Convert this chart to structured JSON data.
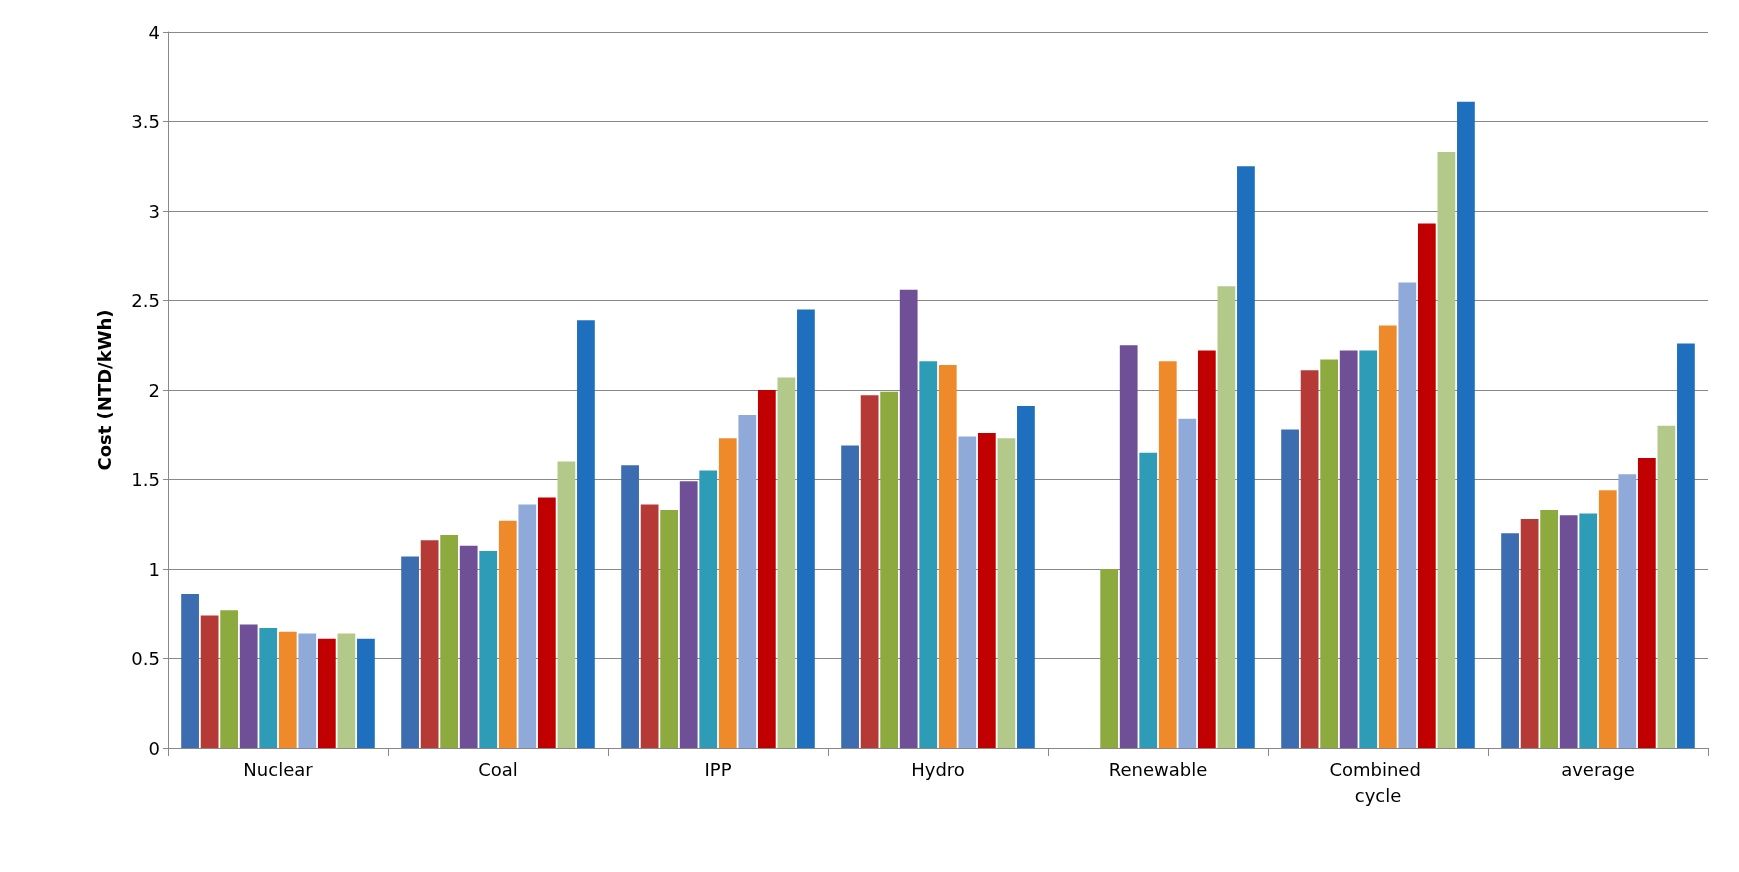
{
  "chart_data": {
    "type": "bar",
    "ylabel": "Cost (NTD/kWh)",
    "categories": [
      "Nuclear",
      "Coal",
      "IPP",
      "Hydro",
      "Renewable",
      "Combined cycle",
      "average"
    ],
    "series": [
      {
        "color": "#3c6db0",
        "values": [
          0.86,
          1.07,
          1.58,
          1.69,
          null,
          1.78,
          1.2
        ]
      },
      {
        "color": "#b53a36",
        "values": [
          0.74,
          1.16,
          1.36,
          1.97,
          null,
          2.11,
          1.28
        ]
      },
      {
        "color": "#8daa3f",
        "values": [
          0.77,
          1.19,
          1.33,
          1.99,
          1.0,
          2.17,
          1.33
        ]
      },
      {
        "color": "#6f4f95",
        "values": [
          0.69,
          1.13,
          1.49,
          2.56,
          2.25,
          2.22,
          1.3
        ]
      },
      {
        "color": "#2f9cb7",
        "values": [
          0.67,
          1.1,
          1.55,
          2.16,
          1.65,
          2.22,
          1.31
        ]
      },
      {
        "color": "#ef8a2a",
        "values": [
          0.65,
          1.27,
          1.73,
          2.14,
          2.16,
          2.36,
          1.44
        ]
      },
      {
        "color": "#8fa9d8",
        "values": [
          0.64,
          1.36,
          1.86,
          1.74,
          1.84,
          2.6,
          1.53
        ]
      },
      {
        "color": "#c00000",
        "values": [
          0.61,
          1.4,
          2.0,
          1.76,
          2.22,
          2.93,
          1.62
        ]
      },
      {
        "color": "#b3c98a",
        "values": [
          0.64,
          1.6,
          2.07,
          1.73,
          2.58,
          3.33,
          1.8
        ]
      },
      {
        "color": "#1f6fbf",
        "values": [
          0.61,
          2.39,
          2.45,
          1.91,
          3.25,
          3.61,
          2.26
        ]
      }
    ],
    "ylim": [
      0,
      4
    ],
    "yticks": [
      0,
      0.5,
      1,
      1.5,
      2,
      2.5,
      3,
      3.5,
      4
    ],
    "grid": "y"
  }
}
